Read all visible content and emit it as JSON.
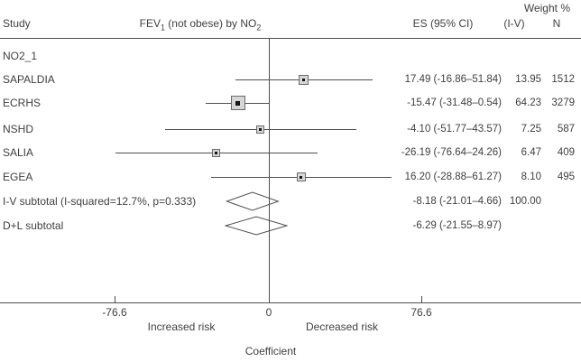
{
  "header": {
    "study": "Study",
    "measure_pre": "FEV",
    "measure_sub1": "1",
    "measure_mid": " (not obese) by NO",
    "measure_sub2": "2",
    "es_ci": "ES (95% CI)",
    "weight_pct": "Weight %",
    "weight_iv": "(I-V)",
    "n": "N"
  },
  "colors": {
    "text": "#3f3f3f",
    "line": "#4f4f4f",
    "marker_fill": "#d6d6d6",
    "marker_border": "#6b6b6b",
    "marker_dot": "#161616",
    "background": "#ffffff"
  },
  "chart_data": {
    "type": "forest",
    "title": "FEV1 (not obese) by NO2",
    "group_label": "NO2_1",
    "xlabel": "Coefficient",
    "x_ticks": [
      -76.6,
      0,
      76.6
    ],
    "x_tick_labels": [
      "-76.6",
      "0",
      "76.6"
    ],
    "zero_line": 0,
    "region_labels": {
      "left": "Increased risk",
      "right": "Decreased risk"
    },
    "studies": [
      {
        "label": "SAPALDIA",
        "es": 17.49,
        "ci_low": -16.86,
        "ci_high": 51.84,
        "es_text": "17.49 (-16.86–51.84)",
        "weight": 13.95,
        "weight_text": "13.95",
        "n": "1512"
      },
      {
        "label": "ECRHS",
        "es": -15.47,
        "ci_low": -31.48,
        "ci_high": 0.54,
        "es_text": "-15.47 (-31.48–0.54)",
        "weight": 64.23,
        "weight_text": "64.23",
        "n": "3279"
      },
      {
        "label": "NSHD",
        "es": -4.1,
        "ci_low": -51.77,
        "ci_high": 43.57,
        "es_text": "-4.10 (-51.77–43.57)",
        "weight": 7.25,
        "weight_text": "7.25",
        "n": "587"
      },
      {
        "label": "SALIA",
        "es": -26.19,
        "ci_low": -76.64,
        "ci_high": 24.26,
        "es_text": "-26.19 (-76.64–24.26)",
        "weight": 6.47,
        "weight_text": "6.47",
        "n": "409"
      },
      {
        "label": "EGEA",
        "es": 16.2,
        "ci_low": -28.88,
        "ci_high": 61.27,
        "es_text": "16.20 (-28.88–61.27)",
        "weight": 8.1,
        "weight_text": "8.10",
        "n": "495"
      }
    ],
    "subtotals": [
      {
        "label": "I-V subtotal (I-squared=12.7%, p=0.333)",
        "es": -8.18,
        "ci_low": -21.01,
        "ci_high": 4.66,
        "es_text": "-8.18 (-21.01–4.66)",
        "weight_text": "100.00",
        "n": ""
      },
      {
        "label": "D+L subtotal",
        "es": -6.29,
        "ci_low": -21.55,
        "ci_high": 8.97,
        "es_text": "-6.29 (-21.55–8.97)",
        "weight_text": "",
        "n": ""
      }
    ]
  }
}
